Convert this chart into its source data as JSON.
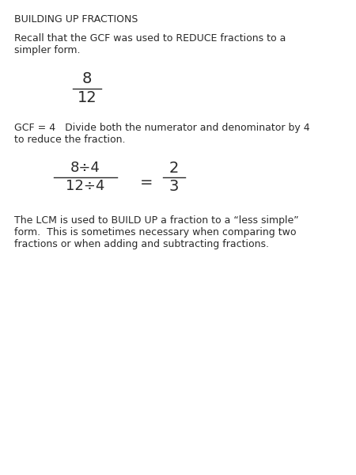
{
  "background_color": "#ffffff",
  "title": "BUILDING UP FRACTIONS",
  "title_fontsize": 9,
  "body_fontsize": 9,
  "math_fontsize": 13,
  "math_fontsize_large": 14,
  "text_color": "#2a2a2a",
  "line1": "Recall that the GCF was used to REDUCE fractions to a",
  "line2": "simpler form.",
  "fraction1_num": "8",
  "fraction1_den": "12",
  "gcf_line1": "GCF = 4   Divide both the numerator and denominator by 4",
  "gcf_line2": "to reduce the fraction.",
  "fraction2_num": "8÷4",
  "fraction2_den": "12÷4",
  "fraction2_eq": "=",
  "fraction2_rnum": "2",
  "fraction2_rden": "3",
  "lcm_line1": "The LCM is used to BUILD UP a fraction to a “less simple”",
  "lcm_line2": "form.  This is sometimes necessary when comparing two",
  "lcm_line3": "fractions or when adding and subtracting fractions."
}
